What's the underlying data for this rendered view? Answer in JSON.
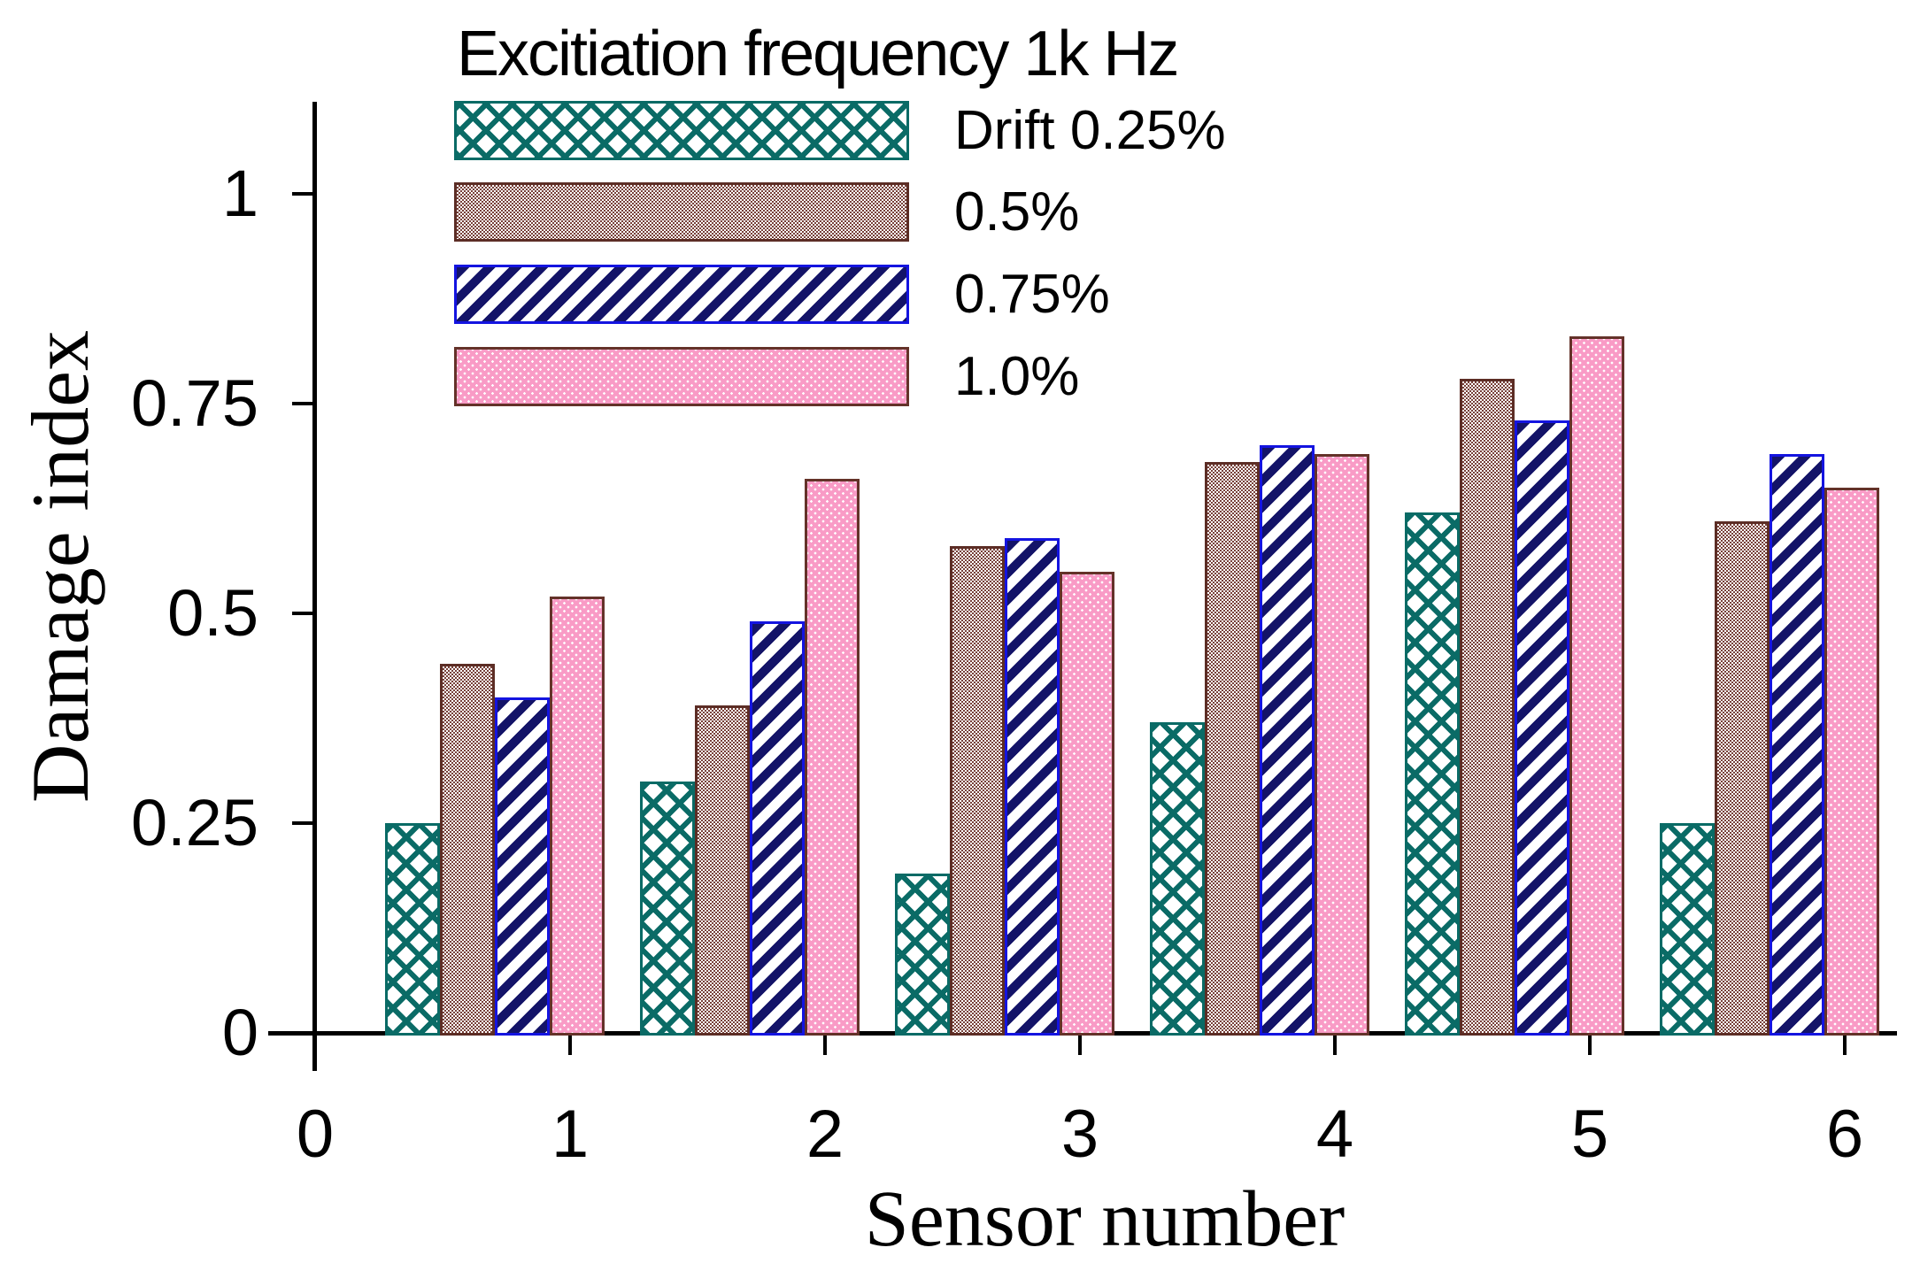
{
  "title": "Excitiation frequency 1k Hz",
  "y_axis": {
    "label": "Damage index",
    "tick_labels": [
      "0",
      "0.25",
      "0.5",
      "0.75",
      "1"
    ],
    "tick_values": [
      0,
      0.25,
      0.5,
      0.75,
      1
    ]
  },
  "x_axis": {
    "label": "Sensor number",
    "tick_labels": [
      "0",
      "1",
      "2",
      "3",
      "4",
      "5",
      "6"
    ],
    "tick_values": [
      0,
      1,
      2,
      3,
      4,
      5,
      6
    ]
  },
  "legend": [
    {
      "label": "Drift 0.25%",
      "pattern": "teal-crosshatch"
    },
    {
      "label": "0.5%",
      "pattern": "brown-checker"
    },
    {
      "label": "0.75%",
      "pattern": "navy-diagonal"
    },
    {
      "label": "1.0%",
      "pattern": "pink-dots"
    }
  ],
  "colors": {
    "teal": "#0a6b66",
    "brown_border": "#5c2d25",
    "brown_checker": "#774039",
    "navy_stripe": "#131368",
    "navy_border": "#1414e0",
    "pink_fill": "#f99bc6",
    "pink_border": "#643229",
    "axis": "#000000"
  },
  "chart_data": {
    "type": "bar",
    "title": "Excitiation frequency 1k Hz",
    "xlabel": "Sensor number",
    "ylabel": "Damage index",
    "categories": [
      1,
      2,
      3,
      4,
      5,
      6
    ],
    "series": [
      {
        "name": "Drift 0.25%",
        "values": [
          0.25,
          0.3,
          0.19,
          0.37,
          0.62,
          0.25
        ]
      },
      {
        "name": "0.5%",
        "values": [
          0.44,
          0.39,
          0.58,
          0.68,
          0.78,
          0.61
        ]
      },
      {
        "name": "0.75%",
        "values": [
          0.4,
          0.49,
          0.59,
          0.7,
          0.73,
          0.69
        ]
      },
      {
        "name": "1.0%",
        "values": [
          0.52,
          0.66,
          0.55,
          0.69,
          0.83,
          0.65
        ]
      }
    ],
    "ylim": [
      0,
      1.11
    ],
    "xlim": [
      0,
      6.2
    ],
    "grid": false,
    "legend_position": "upper-left-inside"
  }
}
